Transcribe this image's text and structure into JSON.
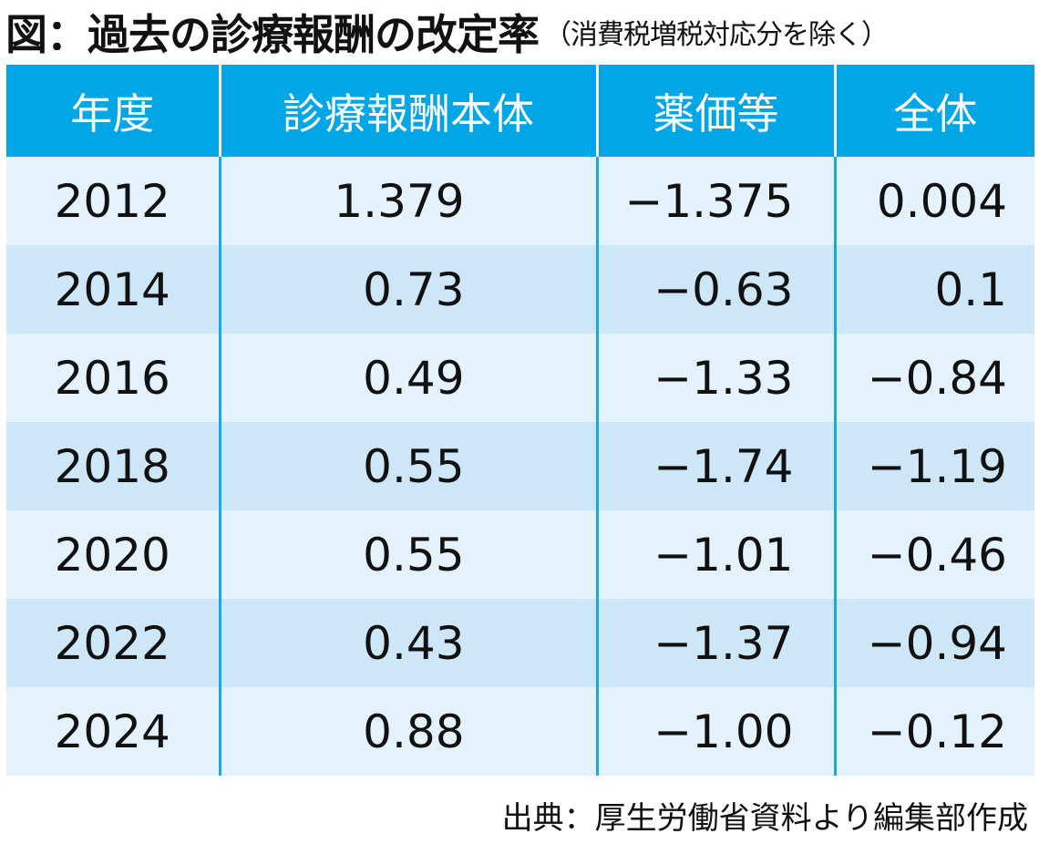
{
  "chart_data": {
    "type": "table",
    "title": "図：過去の診療報酬の改定率",
    "subtitle": "（消費税増税対応分を除く）",
    "columns": [
      "年度",
      "診療報酬本体",
      "薬価等",
      "全体"
    ],
    "rows": [
      [
        "2012",
        "1.379",
        "−1.375",
        "0.004"
      ],
      [
        "2014",
        "0.73",
        "−0.63",
        "0.1"
      ],
      [
        "2016",
        "0.49",
        "−1.33",
        "−0.84"
      ],
      [
        "2018",
        "0.55",
        "−1.74",
        "−1.19"
      ],
      [
        "2020",
        "0.55",
        "−1.01",
        "−0.46"
      ],
      [
        "2022",
        "0.43",
        "−1.37",
        "−0.94"
      ],
      [
        "2024",
        "0.88",
        "−1.00",
        "−0.12"
      ]
    ],
    "source": "出典：厚生労働省資料より編集部作成"
  },
  "colors": {
    "header_bg": "#00a6e6",
    "row_light": "#e3f2fc",
    "row_dark": "#cde6f8",
    "divider": "#1aa8e0"
  }
}
